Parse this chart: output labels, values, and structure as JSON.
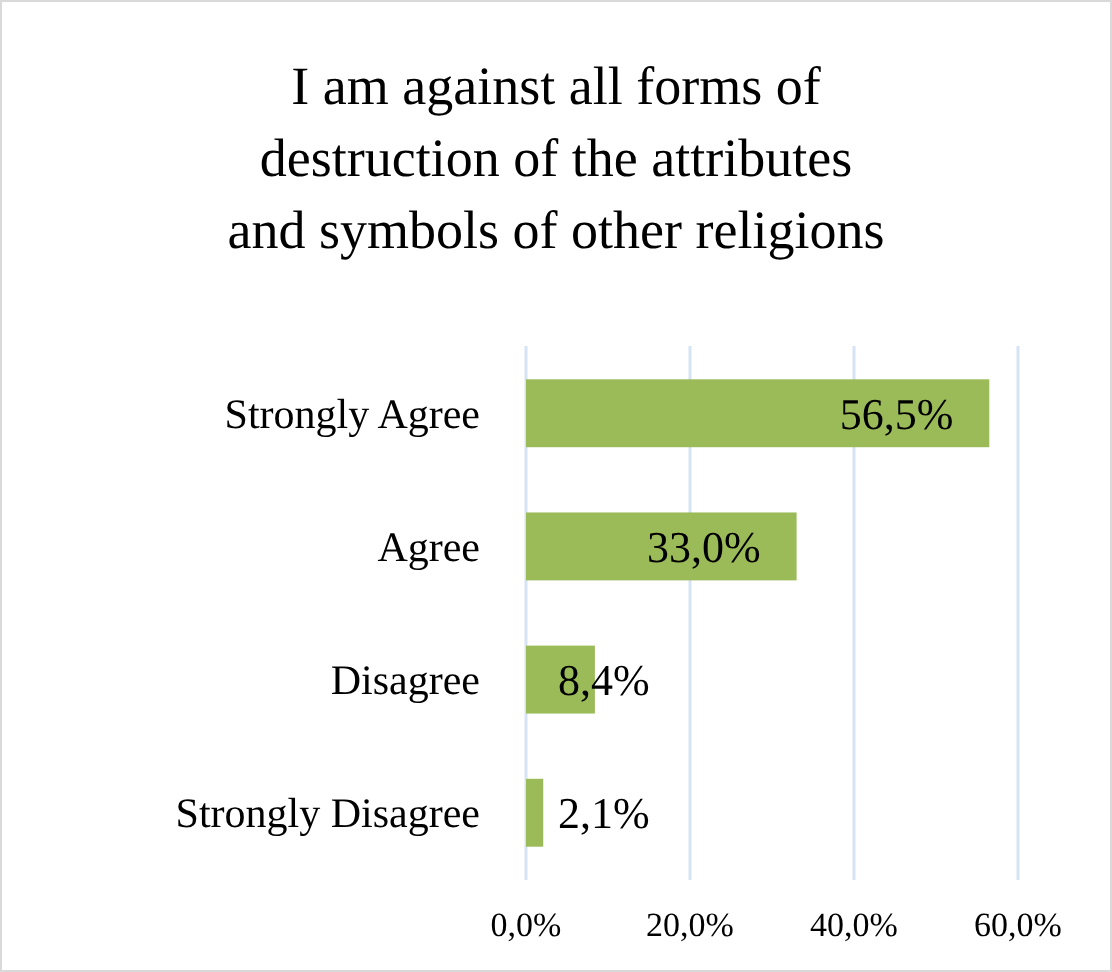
{
  "chart_data": {
    "type": "bar",
    "orientation": "horizontal",
    "title": "I am against all forms of destruction of the attributes and symbols of other religions",
    "categories": [
      "Strongly Agree",
      "Agree",
      "Disagree",
      "Strongly Disagree"
    ],
    "values": [
      56.5,
      33.0,
      8.4,
      2.1
    ],
    "color": "#9bbb59",
    "value_labels": [
      "56,5%",
      "33,0%",
      "8,4%",
      "2,1%"
    ],
    "xlim": [
      0,
      60
    ],
    "xticks": [
      {
        "value": 0,
        "label": "0,0%"
      },
      {
        "value": 20,
        "label": "20,0%"
      },
      {
        "value": 40,
        "label": "40,0%"
      },
      {
        "value": 60,
        "label": "60,0%"
      }
    ],
    "grid": "x"
  }
}
